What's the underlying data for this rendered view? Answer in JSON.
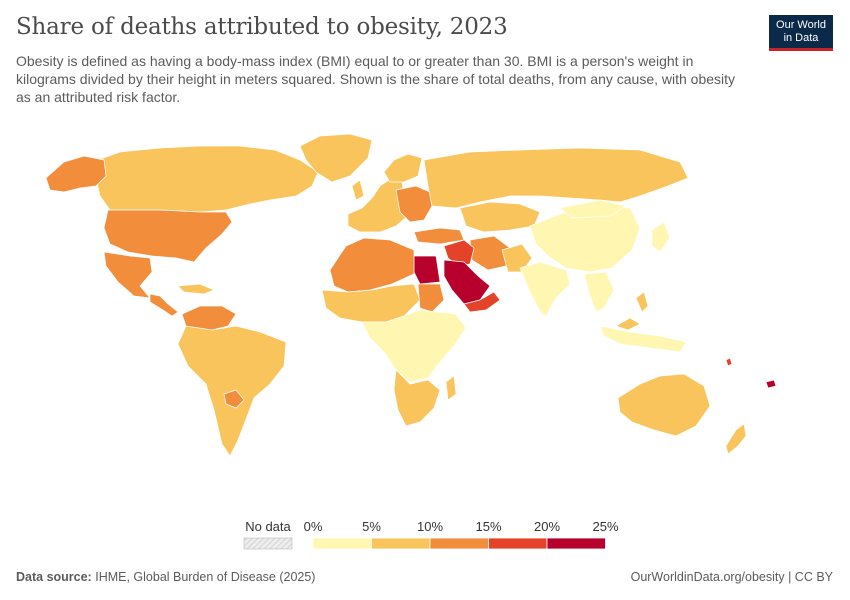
{
  "header": {
    "title": "Share of deaths attributed to obesity, 2023",
    "subtitle": "Obesity is defined as having a body-mass index (BMI) equal to or greater than 30. BMI is a person's weight in kilograms divided by their height in meters squared. Shown is the share of total deaths, from any cause, with obesity as an attributed risk factor.",
    "logo_line1": "Our World",
    "logo_line2": "in Data"
  },
  "legend": {
    "no_data_label": "No data",
    "ticks": [
      "0%",
      "5%",
      "10%",
      "15%",
      "20%",
      "25%"
    ],
    "bins": [
      {
        "from": 0,
        "to": 5,
        "color": "#fff7b1"
      },
      {
        "from": 5,
        "to": 10,
        "color": "#f9c45c"
      },
      {
        "from": 10,
        "to": 15,
        "color": "#f28d3c"
      },
      {
        "from": 15,
        "to": 20,
        "color": "#e4432a"
      },
      {
        "from": 20,
        "to": 25,
        "color": "#b7002c"
      }
    ]
  },
  "colors": {
    "no_data": "#e9e9e9",
    "border": "#ffffff",
    "text": "#5b5b5b"
  },
  "footer": {
    "source_label": "Data source:",
    "source_text": "IHME, Global Burden of Disease (2025)",
    "url_text": "OurWorldinData.org/obesity | CC BY"
  }
}
